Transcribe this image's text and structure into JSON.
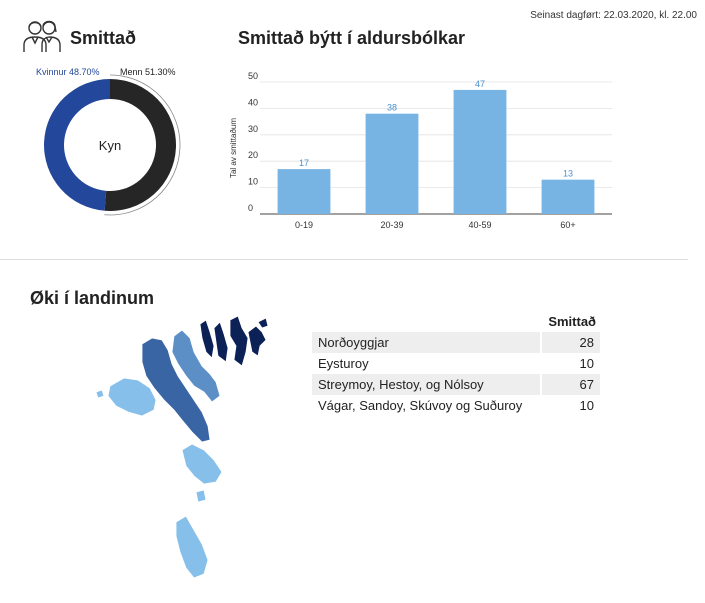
{
  "updated": "Seinast dagført: 22.03.2020, kl. 22.00",
  "titles": {
    "infected": "Smittað",
    "age_groups": "Smittað býtt í aldursbólkar",
    "regions": "Øki í landinum"
  },
  "icons": {
    "people": "people-icon"
  },
  "chart_data": [
    {
      "type": "pie",
      "center_label": "Kyn",
      "slices": [
        {
          "label": "Kvinnur 48.70%",
          "value": 48.7,
          "color": "#23479a"
        },
        {
          "label": "Menn 51.30%",
          "value": 51.3,
          "color": "#262626"
        }
      ]
    },
    {
      "type": "bar",
      "title": "Smittað býtt í aldursbólkar",
      "ylabel": "Tal av smittaðum",
      "xlabel": "",
      "categories": [
        "0-19",
        "20-39",
        "40-59",
        "60+"
      ],
      "values": [
        17,
        38,
        47,
        13
      ],
      "ylim": [
        0,
        50
      ],
      "yticks": [
        0,
        10,
        20,
        30,
        40,
        50
      ],
      "grid": true,
      "color": "#77b4e3"
    }
  ],
  "regions_table": {
    "header": "Smittað",
    "rows": [
      {
        "name": "Norðoyggjar",
        "value": "28"
      },
      {
        "name": "Eysturoy",
        "value": "10"
      },
      {
        "name": "Streymoy, Hestoy, og Nólsoy",
        "value": "67"
      },
      {
        "name": "Vágar, Sandoy, Skúvoy og Suðuroy",
        "value": "10"
      }
    ]
  },
  "map_colors": {
    "Norðoyggjar": "#0c2156",
    "Eysturoy": "#5b8fc6",
    "Streymoy": "#3a65a4",
    "south": "#86c0ea"
  }
}
